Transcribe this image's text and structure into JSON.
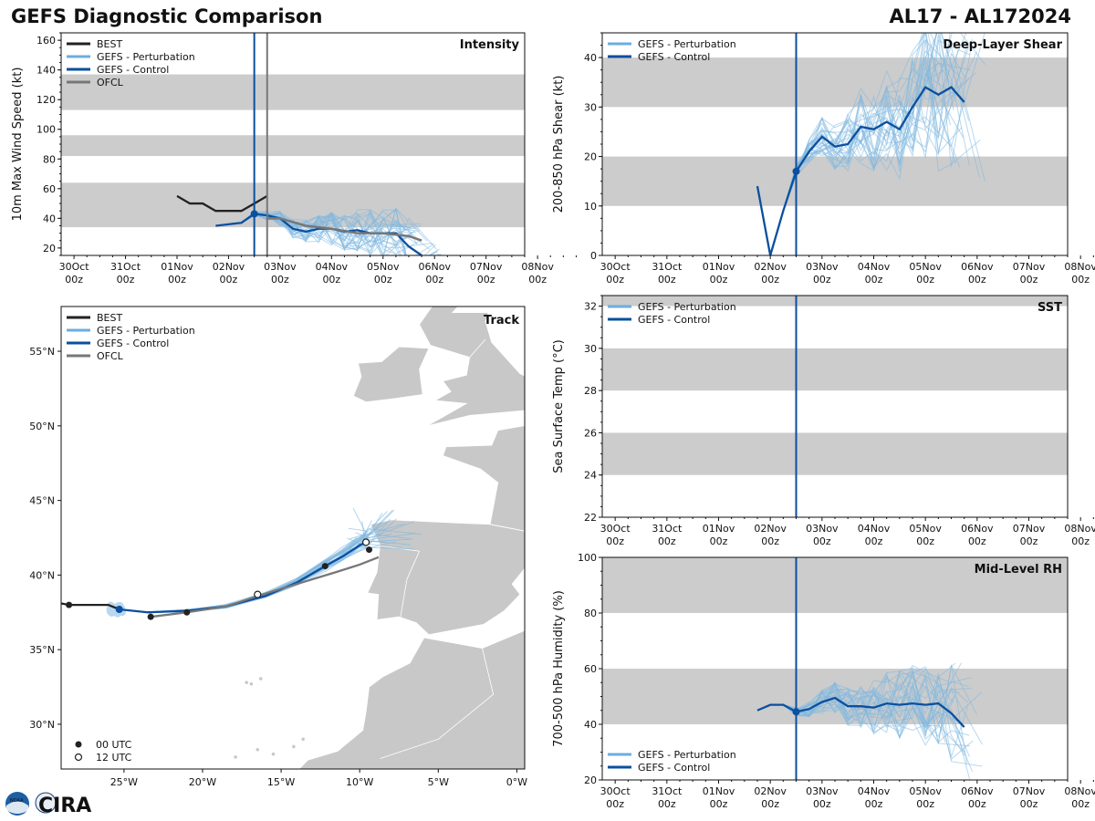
{
  "header": {
    "title": "GEFS Diagnostic Comparison",
    "storm": "AL17 - AL172024"
  },
  "colors": {
    "best": "#222222",
    "pert": "#7fb8e0",
    "pert_line": "#6aaee0",
    "control": "#0b4f9e",
    "ofcl": "#777777",
    "band": "#cccccc",
    "land": "#c8c8c8"
  },
  "time_axis": {
    "day_labels": [
      "30Oct",
      "31Oct",
      "01Nov",
      "02Nov",
      "03Nov",
      "04Nov",
      "05Nov",
      "06Nov",
      "07Nov",
      "08Nov"
    ],
    "hour_label": "00z",
    "init_day": 3.5,
    "ofcl_marker_day": 3.75
  },
  "logo": {
    "text": "CIRA",
    "badge": "NOAA"
  },
  "chart_data": [
    {
      "id": "intensity",
      "type": "line",
      "title": "Intensity",
      "ylabel": "10m Max Wind Speed (kt)",
      "ylim": [
        15,
        165
      ],
      "yticks": [
        20,
        40,
        60,
        80,
        100,
        120,
        140,
        160
      ],
      "bands": [
        [
          34,
          64
        ],
        [
          82,
          96
        ],
        [
          113,
          137
        ]
      ],
      "legend": [
        "BEST",
        "GEFS - Perturbation",
        "GEFS - Control",
        "OFCL"
      ],
      "series": [
        {
          "name": "BEST",
          "x": [
            2.0,
            2.25,
            2.5,
            2.75,
            3.0,
            3.25,
            3.5,
            3.75
          ],
          "y": [
            55,
            50,
            50,
            45,
            45,
            45,
            50,
            55
          ]
        },
        {
          "name": "GEFS - Control",
          "x": [
            2.75,
            3.0,
            3.25,
            3.5,
            3.75,
            4.0,
            4.25,
            4.5,
            4.75,
            5.0,
            5.25,
            5.5,
            5.75,
            6.0,
            6.25,
            6.5,
            6.75
          ],
          "y": [
            35,
            36,
            37,
            43,
            42,
            40,
            33,
            31,
            33,
            33,
            31,
            32,
            30,
            30,
            30,
            21,
            15
          ]
        },
        {
          "name": "OFCL",
          "x": [
            3.75,
            4.0,
            4.5,
            5.0,
            5.5,
            6.0,
            6.5,
            6.75
          ],
          "y": [
            40,
            40,
            35,
            33,
            30,
            30,
            28,
            25
          ]
        }
      ]
    },
    {
      "id": "shear",
      "type": "line",
      "title": "Deep-Layer Shear",
      "ylabel": "200-850 hPa Shear (kt)",
      "ylim": [
        0,
        45
      ],
      "yticks": [
        0,
        10,
        20,
        30,
        40
      ],
      "bands": [
        [
          10,
          20
        ],
        [
          30,
          40
        ]
      ],
      "legend": [
        "GEFS - Perturbation",
        "GEFS - Control"
      ],
      "series": [
        {
          "name": "GEFS - Control",
          "x": [
            2.75,
            3.0,
            3.25,
            3.5,
            3.75,
            4.0,
            4.25,
            4.5,
            4.75,
            5.0,
            5.25,
            5.5,
            5.75,
            6.0,
            6.25,
            6.5,
            6.75
          ],
          "y": [
            14,
            0,
            9,
            17,
            21,
            24,
            22,
            22.5,
            26,
            25.5,
            27,
            25.5,
            30,
            34,
            32.5,
            34,
            31
          ]
        }
      ]
    },
    {
      "id": "sst",
      "type": "line",
      "title": "SST",
      "ylabel": "Sea Surface Temp (°C)",
      "ylim": [
        22,
        32.5
      ],
      "yticks": [
        22,
        24,
        26,
        28,
        30,
        32
      ],
      "bands": [
        [
          24,
          26
        ],
        [
          28,
          30
        ],
        [
          32,
          32.5
        ]
      ],
      "legend": [
        "GEFS - Perturbation",
        "GEFS - Control"
      ],
      "series": []
    },
    {
      "id": "rh",
      "type": "line",
      "title": "Mid-Level RH",
      "ylabel": "700-500 hPa Humidity (%)",
      "ylim": [
        20,
        100
      ],
      "yticks": [
        20,
        40,
        60,
        80,
        100
      ],
      "bands": [
        [
          40,
          60
        ],
        [
          80,
          100
        ]
      ],
      "legend": [
        "GEFS - Perturbation",
        "GEFS - Control"
      ],
      "series": [
        {
          "name": "GEFS - Control",
          "x": [
            2.75,
            3.0,
            3.25,
            3.5,
            3.75,
            4.0,
            4.25,
            4.5,
            4.75,
            5.0,
            5.25,
            5.5,
            5.75,
            6.0,
            6.25,
            6.5,
            6.75
          ],
          "y": [
            45,
            47,
            47,
            44.5,
            45.5,
            48,
            49.5,
            46.5,
            46.5,
            46,
            47.5,
            47,
            47.5,
            47,
            47.5,
            44,
            39
          ]
        }
      ]
    },
    {
      "id": "track",
      "type": "scatter",
      "title": "Track",
      "xlim": [
        -29,
        0.5
      ],
      "ylim": [
        27,
        58
      ],
      "xticks": [
        -25,
        -20,
        -15,
        -10,
        -5,
        0
      ],
      "xtick_labels": [
        "25°W",
        "20°W",
        "15°W",
        "10°W",
        "5°W",
        "0°W"
      ],
      "yticks": [
        30,
        35,
        40,
        45,
        50,
        55
      ],
      "ytick_labels": [
        "30°N",
        "35°N",
        "40°N",
        "45°N",
        "50°N",
        "55°N"
      ],
      "legend": [
        "BEST",
        "GEFS - Perturbation",
        "GEFS - Control",
        "OFCL"
      ],
      "marker_legend": [
        "00 UTC",
        "12 UTC"
      ],
      "series": [
        {
          "name": "BEST",
          "lon": [
            -29,
            -28.5,
            -27,
            -26,
            -25.3
          ],
          "lat": [
            38.1,
            38.0,
            38.0,
            38.0,
            37.7
          ],
          "dots00": [
            [
              -28.5,
              38.0
            ]
          ]
        },
        {
          "name": "GEFS - Control",
          "lon": [
            -25.3,
            -23.5,
            -21,
            -18.5,
            -16,
            -14,
            -12.2,
            -11,
            -10,
            -9.6
          ],
          "lat": [
            37.7,
            37.5,
            37.6,
            37.9,
            38.6,
            39.5,
            40.6,
            41.3,
            42.0,
            42.2
          ],
          "dots00": [
            [
              -12.2,
              40.6
            ]
          ],
          "dots12": [
            [
              -9.6,
              42.2
            ]
          ]
        },
        {
          "name": "OFCL",
          "lon": [
            -23.3,
            -21,
            -18.5,
            -16.5,
            -14,
            -11.5,
            -10,
            -8.8
          ],
          "lat": [
            37.2,
            37.5,
            37.9,
            38.6,
            39.4,
            40.2,
            40.7,
            41.2
          ],
          "dots00": [
            [
              -23.3,
              37.2
            ],
            [
              -21,
              37.5
            ],
            [
              -9.4,
              41.7
            ]
          ],
          "dots12": [
            [
              -16.5,
              38.7
            ]
          ]
        }
      ]
    }
  ]
}
